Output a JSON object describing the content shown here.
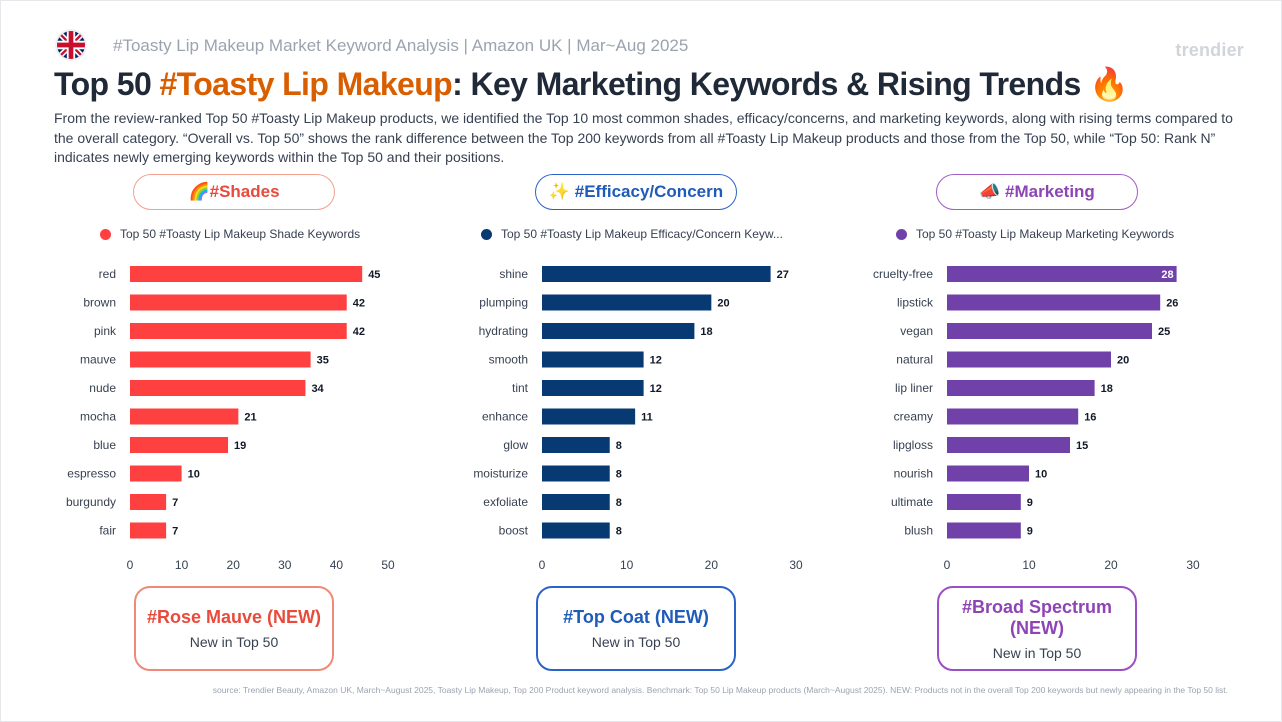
{
  "header": {
    "subtitle": "#Toasty Lip Makeup Market Keyword Analysis | Amazon UK | Mar~Aug 2025",
    "brand": "trendier",
    "flag_icon": "uk-flag-icon",
    "title_prefix": "Top 50 ",
    "title_accent": "#Toasty Lip Makeup",
    "title_suffix": ": Key Marketing Keywords & Rising Trends ",
    "title_emoji": "🔥",
    "description": "From the review-ranked Top 50 #Toasty Lip Makeup products, we identified the Top 10 most common shades, efficacy/concerns, and marketing keywords, along with rising terms compared to the overall category. “Overall vs. Top 50” shows the rank difference between the Top 200 keywords from all #Toasty Lip Makeup products and those from the Top 50, while “Top 50: Rank N” indicates newly emerging keywords within the Top 50 and their positions."
  },
  "sections": {
    "shades": {
      "pill_label": "🌈#Shades",
      "legend": "Top 50 #Toasty Lip Makeup Shade Keywords",
      "color": "#ff4040",
      "callout_keyword": "#Rose Mauve (NEW)",
      "callout_sub": "New in Top 50"
    },
    "efficacy": {
      "pill_label": "✨ #Efficacy/Concern",
      "legend": "Top 50 #Toasty Lip Makeup Efficacy/Concern Keyw...",
      "color": "#073a73",
      "callout_keyword": "#Top Coat (NEW)",
      "callout_sub": "New in Top 50"
    },
    "marketing": {
      "pill_label": "📣 #Marketing",
      "legend": "Top 50 #Toasty Lip Makeup Marketing Keywords",
      "color": "#7041a8",
      "callout_keyword": "#Broad Spectrum (NEW)",
      "callout_sub": "New in Top 50"
    }
  },
  "chart_data": [
    {
      "type": "bar",
      "orientation": "horizontal",
      "series": [
        {
          "name": "Top 50 #Toasty Lip Makeup Shade Keywords",
          "values": [
            45,
            42,
            42,
            35,
            34,
            21,
            19,
            10,
            7,
            7
          ]
        }
      ],
      "categories": [
        "red",
        "brown",
        "pink",
        "mauve",
        "nude",
        "mocha",
        "blue",
        "espresso",
        "burgundy",
        "fair"
      ],
      "xlim": [
        0,
        50
      ],
      "xticks": [
        0,
        10,
        20,
        30,
        40,
        50
      ],
      "color": "#ff4040"
    },
    {
      "type": "bar",
      "orientation": "horizontal",
      "series": [
        {
          "name": "Top 50 #Toasty Lip Makeup Efficacy/Concern Keyw...",
          "values": [
            27,
            20,
            18,
            12,
            12,
            11,
            8,
            8,
            8,
            8
          ]
        }
      ],
      "categories": [
        "shine",
        "plumping",
        "hydrating",
        "smooth",
        "tint",
        "enhance",
        "glow",
        "moisturize",
        "exfoliate",
        "boost"
      ],
      "xlim": [
        0,
        30
      ],
      "xticks": [
        0,
        10,
        20,
        30
      ],
      "color": "#073a73"
    },
    {
      "type": "bar",
      "orientation": "horizontal",
      "series": [
        {
          "name": "Top 50 #Toasty Lip Makeup Marketing Keywords",
          "values": [
            28,
            26,
            25,
            20,
            18,
            16,
            15,
            10,
            9,
            9
          ]
        }
      ],
      "categories": [
        "cruelty-free",
        "lipstick",
        "vegan",
        "natural",
        "lip liner",
        "creamy",
        "lipgloss",
        "nourish",
        "ultimate",
        "blush"
      ],
      "xlim": [
        0,
        30
      ],
      "xticks": [
        0,
        10,
        20,
        30
      ],
      "color": "#7041a8"
    }
  ],
  "footer": {
    "source": "source: Trendier Beauty, Amazon UK, March~August 2025, Toasty Lip Makeup, Top 200 Product keyword analysis. Benchmark: Top 50 Lip Makeup products (March~August 2025). NEW: Products not in the overall Top 200 keywords but newly appearing in the Top 50 list."
  }
}
